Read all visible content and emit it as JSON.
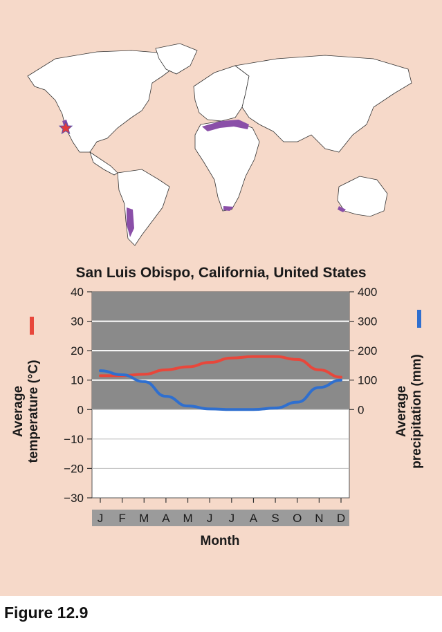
{
  "figure": {
    "caption": "Figure 12.9",
    "background": "#f6d9c9"
  },
  "map": {
    "marker_icon": "star-icon",
    "marker_color": "#e23b3b",
    "highlight_color": "#8a4fa8"
  },
  "chart_data": {
    "type": "line",
    "title": "San Luis Obispo, California, United States",
    "xlabel": "Month",
    "categories": [
      "J",
      "F",
      "M",
      "A",
      "M",
      "J",
      "J",
      "A",
      "S",
      "O",
      "N",
      "D"
    ],
    "y_left": {
      "label": "Average temperature (°C)",
      "ticks": [
        "40",
        "30",
        "20",
        "10",
        "0",
        "−10",
        "−20",
        "−30"
      ],
      "range": [
        -30,
        40
      ]
    },
    "y_right": {
      "label": "Average precipitation (mm)",
      "ticks": [
        "400",
        "300",
        "200",
        "100",
        "0"
      ],
      "range": [
        0,
        400
      ]
    },
    "series": [
      {
        "name": "Average temperature",
        "axis": "left",
        "color": "#e8473b",
        "values": [
          11.5,
          11.5,
          12,
          13.5,
          14.5,
          16,
          17.5,
          18,
          18,
          17,
          13.5,
          11
        ]
      },
      {
        "name": "Average precipitation",
        "axis": "right",
        "color": "#2f6fcf",
        "values": [
          132,
          118,
          95,
          45,
          12,
          2,
          0,
          0,
          5,
          25,
          75,
          100
        ]
      }
    ],
    "grid": true,
    "shaded_region_color": "#8a8a8a"
  }
}
